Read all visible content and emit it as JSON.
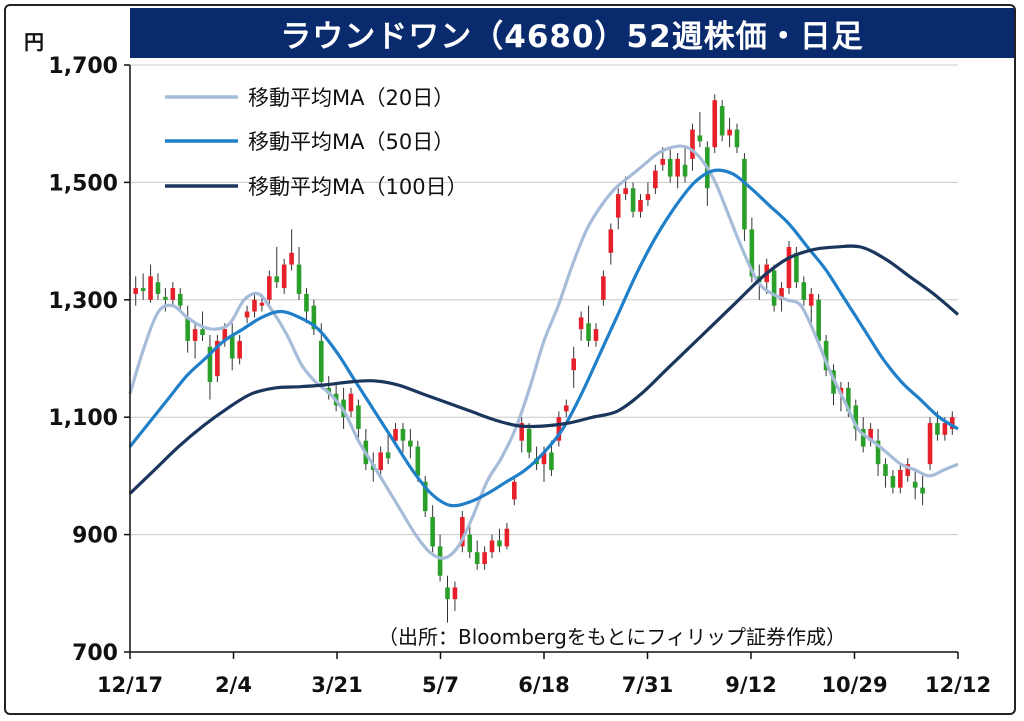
{
  "title": "ラウンドワン（4680）52週株価・日足",
  "unit_label": "円",
  "source_note": "（出所：Bloombergをもとにフィリップ証券作成）",
  "colors": {
    "title_bg": "#0a2a6e",
    "up": "#e8202a",
    "down": "#2aa02a",
    "ma20": "#a6bcd9",
    "ma50": "#1f7fc8",
    "ma100": "#1b365d",
    "grid": "#c8c8c8"
  },
  "chart_data": {
    "type": "candlestick",
    "title": "ラウンドワン（4680）52週株価・日足",
    "ylabel": "円",
    "ylim": [
      700,
      1700
    ],
    "yticks": [
      "1,700",
      "1,500",
      "1,300",
      "1,100",
      "900",
      "700"
    ],
    "ytick_values": [
      1700,
      1500,
      1300,
      1100,
      900,
      700
    ],
    "xlabels": [
      "12/17",
      "2/4",
      "3/21",
      "5/7",
      "6/18",
      "7/31",
      "9/12",
      "10/29",
      "12/12"
    ],
    "grid": true,
    "legend_position": "top-left",
    "series": [
      {
        "name": "移動平均MA（20日）",
        "color_key": "ma20",
        "values": [
          1140,
          1220,
          1280,
          1290,
          1270,
          1255,
          1250,
          1260,
          1300,
          1310,
          1280,
          1240,
          1190,
          1160,
          1140,
          1110,
          1060,
          1020,
          980,
          940,
          900,
          870,
          860,
          880,
          930,
          990,
          1030,
          1080,
          1150,
          1230,
          1290,
          1360,
          1420,
          1460,
          1490,
          1510,
          1530,
          1550,
          1560,
          1560,
          1540,
          1500,
          1440,
          1380,
          1330,
          1310,
          1300,
          1290,
          1240,
          1180,
          1130,
          1080,
          1060,
          1040,
          1020,
          1010,
          1000,
          1010,
          1020
        ]
      },
      {
        "name": "移動平均MA（50日）",
        "color_key": "ma50",
        "values": [
          1050,
          1090,
          1130,
          1170,
          1200,
          1230,
          1250,
          1270,
          1280,
          1270,
          1250,
          1210,
          1160,
          1110,
          1060,
          1010,
          970,
          950,
          955,
          970,
          990,
          1010,
          1040,
          1080,
          1140,
          1210,
          1280,
          1350,
          1410,
          1460,
          1500,
          1520,
          1515,
          1490,
          1460,
          1430,
          1390,
          1350,
          1300,
          1250,
          1200,
          1160,
          1130,
          1100,
          1080
        ]
      },
      {
        "name": "移動平均MA（100日）",
        "color_key": "ma100",
        "values": [
          970,
          1010,
          1050,
          1085,
          1115,
          1140,
          1150,
          1152,
          1155,
          1160,
          1162,
          1155,
          1140,
          1125,
          1110,
          1095,
          1085,
          1085,
          1090,
          1100,
          1110,
          1140,
          1180,
          1220,
          1260,
          1300,
          1340,
          1370,
          1385,
          1390,
          1390,
          1370,
          1340,
          1310,
          1275
        ]
      }
    ],
    "candles": [
      [
        1310,
        1340,
        1290,
        1320
      ],
      [
        1320,
        1345,
        1300,
        1315
      ],
      [
        1300,
        1360,
        1295,
        1340
      ],
      [
        1330,
        1345,
        1300,
        1310
      ],
      [
        1305,
        1320,
        1280,
        1300
      ],
      [
        1300,
        1330,
        1290,
        1320
      ],
      [
        1310,
        1320,
        1280,
        1290
      ],
      [
        1270,
        1290,
        1210,
        1230
      ],
      [
        1230,
        1260,
        1200,
        1250
      ],
      [
        1250,
        1280,
        1230,
        1240
      ],
      [
        1220,
        1240,
        1130,
        1160
      ],
      [
        1170,
        1240,
        1160,
        1230
      ],
      [
        1230,
        1260,
        1220,
        1250
      ],
      [
        1240,
        1260,
        1180,
        1200
      ],
      [
        1200,
        1240,
        1190,
        1230
      ],
      [
        1270,
        1290,
        1260,
        1280
      ],
      [
        1280,
        1310,
        1270,
        1300
      ],
      [
        1290,
        1310,
        1280,
        1295
      ],
      [
        1300,
        1350,
        1290,
        1340
      ],
      [
        1340,
        1390,
        1320,
        1330
      ],
      [
        1320,
        1370,
        1310,
        1360
      ],
      [
        1360,
        1420,
        1350,
        1380
      ],
      [
        1360,
        1390,
        1300,
        1310
      ],
      [
        1310,
        1320,
        1260,
        1280
      ],
      [
        1290,
        1300,
        1240,
        1250
      ],
      [
        1230,
        1260,
        1150,
        1160
      ],
      [
        1150,
        1170,
        1130,
        1140
      ],
      [
        1140,
        1160,
        1110,
        1120
      ],
      [
        1130,
        1150,
        1080,
        1100
      ],
      [
        1110,
        1150,
        1100,
        1140
      ],
      [
        1120,
        1130,
        1060,
        1080
      ],
      [
        1060,
        1080,
        1010,
        1020
      ],
      [
        1020,
        1040,
        990,
        1010
      ],
      [
        1010,
        1050,
        1000,
        1040
      ],
      [
        1040,
        1070,
        1020,
        1030
      ],
      [
        1060,
        1090,
        1050,
        1080
      ],
      [
        1080,
        1090,
        1040,
        1060
      ],
      [
        1060,
        1080,
        1030,
        1050
      ],
      [
        1050,
        1060,
        990,
        1000
      ],
      [
        990,
        1000,
        930,
        940
      ],
      [
        930,
        950,
        870,
        880
      ],
      [
        880,
        900,
        820,
        830
      ],
      [
        810,
        830,
        750,
        790
      ],
      [
        790,
        820,
        770,
        810
      ],
      [
        880,
        940,
        870,
        930
      ],
      [
        900,
        920,
        860,
        870
      ],
      [
        870,
        890,
        840,
        850
      ],
      [
        850,
        880,
        840,
        870
      ],
      [
        870,
        900,
        860,
        890
      ],
      [
        890,
        910,
        870,
        880
      ],
      [
        880,
        920,
        875,
        910
      ],
      [
        960,
        1000,
        950,
        990
      ],
      [
        1060,
        1100,
        1040,
        1090
      ],
      [
        1080,
        1090,
        1030,
        1040
      ],
      [
        1030,
        1050,
        1010,
        1020
      ],
      [
        1020,
        1050,
        990,
        1040
      ],
      [
        1040,
        1060,
        1000,
        1010
      ],
      [
        1060,
        1110,
        1050,
        1100
      ],
      [
        1110,
        1130,
        1100,
        1120
      ],
      [
        1180,
        1220,
        1150,
        1200
      ],
      [
        1250,
        1280,
        1230,
        1270
      ],
      [
        1260,
        1290,
        1220,
        1230
      ],
      [
        1230,
        1260,
        1220,
        1250
      ],
      [
        1300,
        1350,
        1290,
        1340
      ],
      [
        1380,
        1430,
        1360,
        1420
      ],
      [
        1440,
        1490,
        1420,
        1480
      ],
      [
        1480,
        1510,
        1470,
        1490
      ],
      [
        1490,
        1500,
        1440,
        1450
      ],
      [
        1450,
        1480,
        1440,
        1470
      ],
      [
        1470,
        1500,
        1460,
        1480
      ],
      [
        1490,
        1530,
        1480,
        1520
      ],
      [
        1530,
        1560,
        1520,
        1540
      ],
      [
        1540,
        1560,
        1500,
        1510
      ],
      [
        1510,
        1550,
        1490,
        1540
      ],
      [
        1530,
        1560,
        1500,
        1510
      ],
      [
        1540,
        1600,
        1520,
        1590
      ],
      [
        1580,
        1620,
        1560,
        1570
      ],
      [
        1560,
        1570,
        1460,
        1490
      ],
      [
        1560,
        1650,
        1550,
        1640
      ],
      [
        1630,
        1640,
        1570,
        1580
      ],
      [
        1580,
        1610,
        1560,
        1590
      ],
      [
        1590,
        1600,
        1550,
        1560
      ],
      [
        1540,
        1550,
        1400,
        1420
      ],
      [
        1420,
        1440,
        1330,
        1340
      ],
      [
        1340,
        1360,
        1300,
        1330
      ],
      [
        1330,
        1370,
        1310,
        1360
      ],
      [
        1350,
        1360,
        1280,
        1290
      ],
      [
        1300,
        1330,
        1280,
        1320
      ],
      [
        1320,
        1400,
        1310,
        1390
      ],
      [
        1380,
        1390,
        1320,
        1330
      ],
      [
        1330,
        1340,
        1290,
        1300
      ],
      [
        1290,
        1320,
        1260,
        1310
      ],
      [
        1300,
        1310,
        1220,
        1230
      ],
      [
        1230,
        1240,
        1170,
        1180
      ],
      [
        1180,
        1190,
        1120,
        1140
      ],
      [
        1140,
        1160,
        1110,
        1150
      ],
      [
        1150,
        1160,
        1100,
        1110
      ],
      [
        1120,
        1130,
        1060,
        1080
      ],
      [
        1080,
        1100,
        1040,
        1050
      ],
      [
        1060,
        1090,
        1050,
        1080
      ],
      [
        1060,
        1080,
        1000,
        1020
      ],
      [
        1020,
        1030,
        980,
        1000
      ],
      [
        1000,
        1010,
        970,
        980
      ],
      [
        980,
        1020,
        970,
        1010
      ],
      [
        1000,
        1030,
        990,
        1020
      ],
      [
        990,
        1010,
        960,
        980
      ],
      [
        980,
        1000,
        950,
        970
      ],
      [
        1020,
        1100,
        1010,
        1090
      ],
      [
        1090,
        1110,
        1060,
        1070
      ],
      [
        1070,
        1100,
        1060,
        1090
      ],
      [
        1080,
        1110,
        1070,
        1100
      ]
    ]
  }
}
